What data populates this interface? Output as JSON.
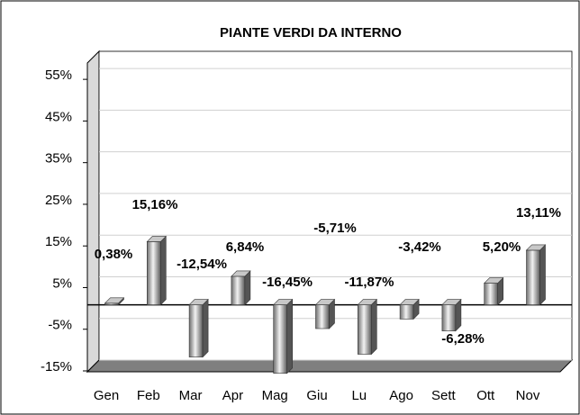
{
  "chart_data": {
    "type": "bar",
    "title": "PIANTE VERDI DA INTERNO",
    "categories": [
      "Gen",
      "Feb",
      "Mar",
      "Apr",
      "Mag",
      "Giu",
      "Lu",
      "Ago",
      "Sett",
      "Ott",
      "Nov"
    ],
    "values": [
      0.38,
      15.16,
      -12.54,
      6.84,
      -16.45,
      -5.71,
      -11.87,
      -3.42,
      -6.28,
      5.2,
      13.11
    ],
    "value_labels": [
      "0,38%",
      "15,16%",
      "-12,54%",
      "6,84%",
      "-16,45%",
      "-5,71%",
      "-11,87%",
      "-3,42%",
      "-6,28%",
      "5,20%",
      "13,11%"
    ],
    "color": "#9a9a9a",
    "ylim": [
      -15,
      60
    ],
    "yticks": [
      {
        "value": -15,
        "label": "-15%"
      },
      {
        "value": -5,
        "label": "-5%"
      },
      {
        "value": 5,
        "label": "5%"
      },
      {
        "value": 15,
        "label": "15%"
      },
      {
        "value": 25,
        "label": "25%"
      },
      {
        "value": 35,
        "label": "35%"
      },
      {
        "value": 45,
        "label": "45%"
      },
      {
        "value": 55,
        "label": "55%"
      }
    ],
    "grid": true
  }
}
